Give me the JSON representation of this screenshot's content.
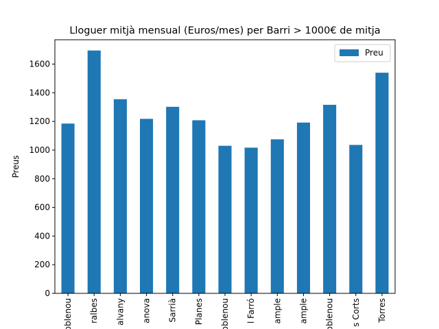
{
  "chart_data": {
    "type": "bar",
    "title": "Lloguer mitjà mensual (Euros/mes) per Barri > 1000€ de mitja",
    "xlabel": "",
    "ylabel": "Preus",
    "ylim": [
      0,
      1770
    ],
    "yticks": [
      0,
      200,
      400,
      600,
      800,
      1000,
      1200,
      1400,
      1600
    ],
    "categories": [
      "oblenou",
      "ralbes",
      "alvany",
      "anova",
      "Sarrià",
      "Planes",
      "oblenou",
      "l Farró",
      "ample",
      "ample",
      "oblenou",
      "s Corts",
      "Torres"
    ],
    "series": [
      {
        "name": "Preu",
        "color": "#1f77b4",
        "values": [
          1185,
          1695,
          1355,
          1218,
          1302,
          1208,
          1030,
          1017,
          1075,
          1192,
          1316,
          1036,
          1540
        ]
      }
    ],
    "legend": {
      "position": "top-right",
      "visible": true
    },
    "grid": false
  }
}
